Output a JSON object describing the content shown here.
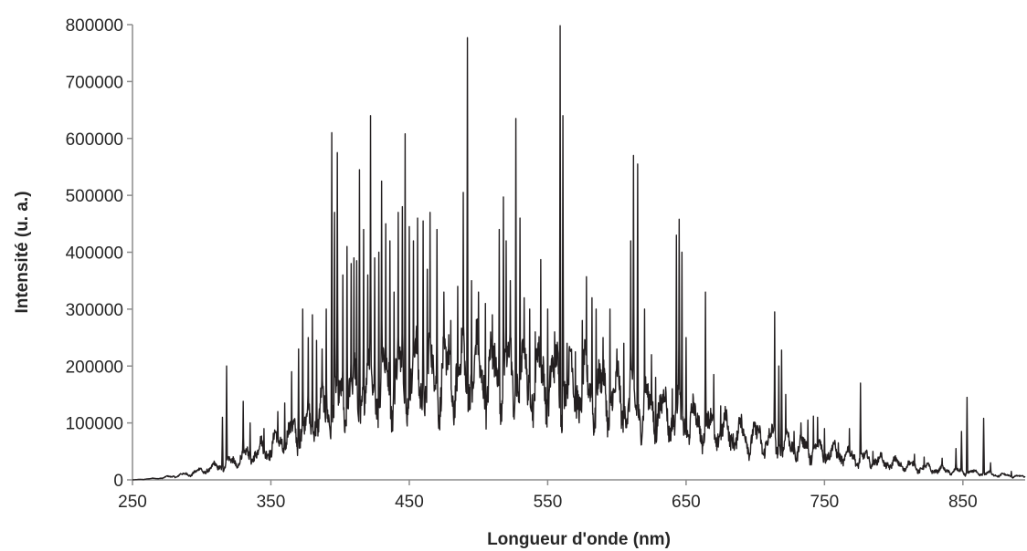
{
  "chart_data": {
    "type": "line",
    "title": "",
    "xlabel": "Longueur d'onde (nm)",
    "ylabel": "Intensité (u. a.)",
    "xlim": [
      250,
      895
    ],
    "ylim": [
      0,
      800000
    ],
    "x_ticks": [
      250,
      350,
      450,
      550,
      650,
      750,
      850
    ],
    "x_tick_labels": [
      "250",
      "350",
      "450",
      "550",
      "650",
      "750",
      "850"
    ],
    "y_ticks": [
      0,
      100000,
      200000,
      300000,
      400000,
      500000,
      600000,
      700000,
      800000
    ],
    "y_tick_labels": [
      "0",
      "100000",
      "200000",
      "300000",
      "400000",
      "500000",
      "600000",
      "700000",
      "800000"
    ],
    "grid": false,
    "legend": "none",
    "line_color": "#231f20",
    "series": [
      {
        "baseline": [
          [
            250,
            0
          ],
          [
            270,
            3000
          ],
          [
            290,
            10000
          ],
          [
            310,
            22000
          ],
          [
            330,
            38000
          ],
          [
            350,
            58000
          ],
          [
            370,
            85000
          ],
          [
            390,
            120000
          ],
          [
            410,
            150000
          ],
          [
            430,
            170000
          ],
          [
            450,
            180000
          ],
          [
            470,
            183000
          ],
          [
            490,
            185000
          ],
          [
            510,
            185000
          ],
          [
            530,
            180000
          ],
          [
            550,
            175000
          ],
          [
            570,
            165000
          ],
          [
            590,
            150000
          ],
          [
            610,
            135000
          ],
          [
            630,
            120000
          ],
          [
            650,
            105000
          ],
          [
            670,
            90000
          ],
          [
            690,
            78000
          ],
          [
            710,
            68000
          ],
          [
            730,
            58000
          ],
          [
            750,
            50000
          ],
          [
            770,
            40000
          ],
          [
            790,
            32000
          ],
          [
            810,
            25000
          ],
          [
            830,
            18000
          ],
          [
            850,
            14000
          ],
          [
            870,
            10000
          ],
          [
            895,
            5000
          ]
        ],
        "peaks": [
          [
            318,
            200000
          ],
          [
            315,
            110000
          ],
          [
            330,
            138000
          ],
          [
            335,
            100000
          ],
          [
            345,
            90000
          ],
          [
            355,
            120000
          ],
          [
            360,
            135000
          ],
          [
            365,
            190000
          ],
          [
            370,
            230000
          ],
          [
            373,
            300000
          ],
          [
            377,
            250000
          ],
          [
            380,
            290000
          ],
          [
            383,
            245000
          ],
          [
            387,
            230000
          ],
          [
            390,
            300000
          ],
          [
            394,
            610000
          ],
          [
            396,
            470000
          ],
          [
            398,
            575000
          ],
          [
            402,
            360000
          ],
          [
            405,
            410000
          ],
          [
            408,
            380000
          ],
          [
            410,
            390000
          ],
          [
            412,
            385000
          ],
          [
            414,
            545000
          ],
          [
            417,
            440000
          ],
          [
            420,
            360000
          ],
          [
            422,
            640000
          ],
          [
            425,
            390000
          ],
          [
            428,
            400000
          ],
          [
            430,
            525000
          ],
          [
            433,
            450000
          ],
          [
            436,
            420000
          ],
          [
            439,
            330000
          ],
          [
            442,
            470000
          ],
          [
            445,
            480000
          ],
          [
            447,
            608000
          ],
          [
            450,
            445000
          ],
          [
            453,
            420000
          ],
          [
            456,
            460000
          ],
          [
            460,
            455000
          ],
          [
            463,
            370000
          ],
          [
            465,
            470000
          ],
          [
            470,
            440000
          ],
          [
            475,
            330000
          ],
          [
            480,
            280000
          ],
          [
            485,
            340000
          ],
          [
            489,
            505000
          ],
          [
            492,
            777000
          ],
          [
            495,
            350000
          ],
          [
            500,
            330000
          ],
          [
            505,
            310000
          ],
          [
            510,
            290000
          ],
          [
            515,
            440000
          ],
          [
            518,
            497000
          ],
          [
            520,
            420000
          ],
          [
            523,
            350000
          ],
          [
            527,
            635000
          ],
          [
            530,
            460000
          ],
          [
            533,
            320000
          ],
          [
            537,
            300000
          ],
          [
            541,
            260000
          ],
          [
            545,
            387000
          ],
          [
            550,
            300000
          ],
          [
            555,
            260000
          ],
          [
            559,
            798000
          ],
          [
            561,
            640000
          ],
          [
            564,
            240000
          ],
          [
            570,
            225000
          ],
          [
            575,
            280000
          ],
          [
            578,
            357000
          ],
          [
            582,
            320000
          ],
          [
            585,
            300000
          ],
          [
            590,
            250000
          ],
          [
            595,
            300000
          ],
          [
            600,
            230000
          ],
          [
            605,
            240000
          ],
          [
            610,
            420000
          ],
          [
            612,
            570000
          ],
          [
            615,
            555000
          ],
          [
            620,
            300000
          ],
          [
            625,
            220000
          ],
          [
            628,
            180000
          ],
          [
            633,
            150000
          ],
          [
            640,
            160000
          ],
          [
            643,
            430000
          ],
          [
            645,
            458000
          ],
          [
            647,
            400000
          ],
          [
            650,
            250000
          ],
          [
            655,
            150000
          ],
          [
            664,
            330000
          ],
          [
            670,
            185000
          ],
          [
            675,
            130000
          ],
          [
            690,
            115000
          ],
          [
            700,
            100000
          ],
          [
            710,
            90000
          ],
          [
            714,
            295000
          ],
          [
            717,
            200000
          ],
          [
            719,
            228000
          ],
          [
            722,
            150000
          ],
          [
            728,
            85000
          ],
          [
            733,
            100000
          ],
          [
            738,
            105000
          ],
          [
            742,
            112000
          ],
          [
            745,
            110000
          ],
          [
            750,
            90000
          ],
          [
            760,
            65000
          ],
          [
            768,
            90000
          ],
          [
            776,
            170000
          ],
          [
            785,
            50000
          ],
          [
            800,
            40000
          ],
          [
            815,
            45000
          ],
          [
            822,
            40000
          ],
          [
            835,
            38000
          ],
          [
            845,
            55000
          ],
          [
            849,
            85000
          ],
          [
            853,
            145000
          ],
          [
            865,
            108000
          ],
          [
            870,
            30000
          ],
          [
            885,
            15000
          ]
        ]
      }
    ]
  }
}
